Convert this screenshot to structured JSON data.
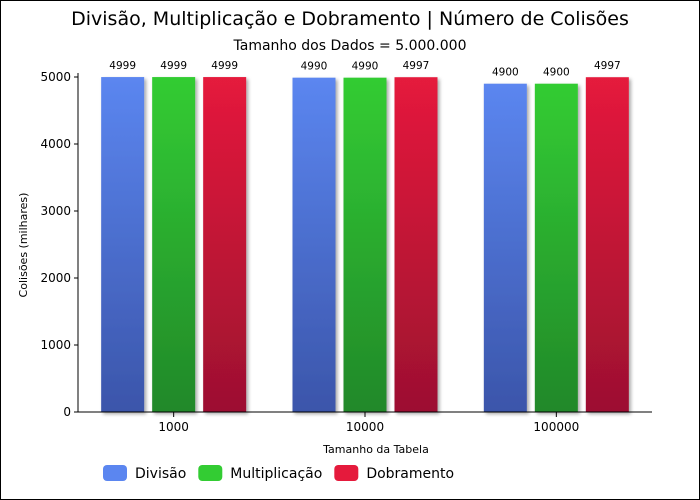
{
  "chart_data": {
    "type": "bar",
    "title": "Divisão, Multiplicação e Dobramento | Número de Colisões",
    "subtitle": "Tamanho dos Dados = 5.000.000",
    "xlabel": "Tamanho da Tabela",
    "ylabel": "Colisões (milhares)",
    "categories": [
      "1000",
      "10000",
      "100000"
    ],
    "ylim": [
      0,
      5000
    ],
    "yticks": [
      0,
      1000,
      2000,
      3000,
      4000,
      5000
    ],
    "legend_position": "bottom-left",
    "grid": false,
    "series": [
      {
        "name": "Divisão",
        "values": [
          4999,
          4990,
          4900
        ],
        "color": "#5b86f0",
        "color_dark": "#3b55aa"
      },
      {
        "name": "Multiplicação",
        "values": [
          4999,
          4990,
          4900
        ],
        "color": "#33cc33",
        "color_dark": "#21882a"
      },
      {
        "name": "Dobramento",
        "values": [
          4999,
          4997,
          4997
        ],
        "color": "#e51a3c",
        "color_dark": "#9c1030"
      }
    ]
  }
}
